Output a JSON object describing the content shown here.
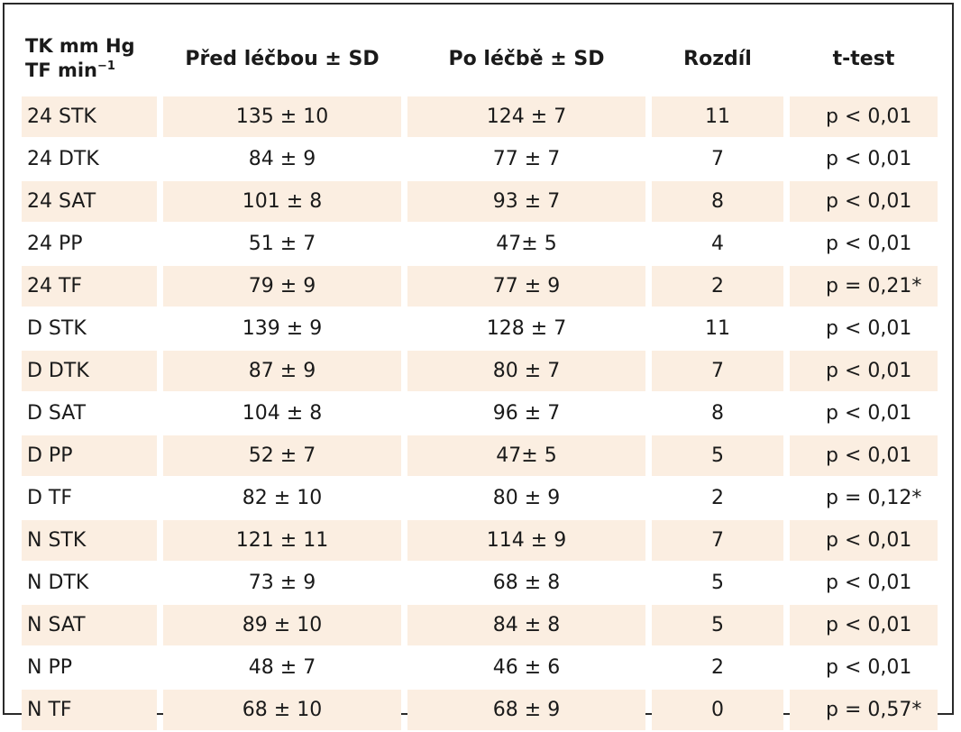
{
  "header": {
    "col1_line1": "TK mm Hg",
    "col1_line2": "TF min",
    "col1_sup": "−1",
    "col2": "Před léčbou ± SD",
    "col3": "Po léčbě ± SD",
    "col4": "Rozdíl",
    "col5": "t-test"
  },
  "rows": [
    {
      "label": "24 STK",
      "before": "135 ± 10",
      "after": "124 ± 7",
      "diff": "11",
      "ttest": "p < 0,01"
    },
    {
      "label": "24 DTK",
      "before": "84 ± 9",
      "after": "77 ± 7",
      "diff": "7",
      "ttest": "p < 0,01"
    },
    {
      "label": "24 SAT",
      "before": "101 ± 8",
      "after": "93 ± 7",
      "diff": "8",
      "ttest": "p < 0,01"
    },
    {
      "label": "24 PP",
      "before": "51 ± 7",
      "after": "47± 5",
      "diff": "4",
      "ttest": "p < 0,01"
    },
    {
      "label": "24 TF",
      "before": "79 ± 9",
      "after": "77 ± 9",
      "diff": "2",
      "ttest": "p = 0,21*"
    },
    {
      "label": "D STK",
      "before": "139 ± 9",
      "after": "128 ± 7",
      "diff": "11",
      "ttest": "p < 0,01"
    },
    {
      "label": "D DTK",
      "before": "87 ± 9",
      "after": "80 ± 7",
      "diff": "7",
      "ttest": "p < 0,01"
    },
    {
      "label": "D SAT",
      "before": "104 ± 8",
      "after": "96 ± 7",
      "diff": "8",
      "ttest": "p < 0,01"
    },
    {
      "label": "D PP",
      "before": "52 ± 7",
      "after": "47± 5",
      "diff": "5",
      "ttest": "p < 0,01"
    },
    {
      "label": "D TF",
      "before": "82 ± 10",
      "after": "80 ± 9",
      "diff": "2",
      "ttest": "p = 0,12*"
    },
    {
      "label": "N STK",
      "before": "121 ± 11",
      "after": "114 ± 9",
      "diff": "7",
      "ttest": "p < 0,01"
    },
    {
      "label": "N DTK",
      "before": "73 ± 9",
      "after": "68 ± 8",
      "diff": "5",
      "ttest": "p < 0,01"
    },
    {
      "label": "N SAT",
      "before": "89 ± 10",
      "after": "84 ± 8",
      "diff": "5",
      "ttest": "p < 0,01"
    },
    {
      "label": "N PP",
      "before": "48 ± 7",
      "after": "46 ± 6",
      "diff": "2",
      "ttest": "p < 0,01"
    },
    {
      "label": "N TF",
      "before": "68 ± 10",
      "after": "68 ± 9",
      "diff": "0",
      "ttest": "p = 0,57*"
    }
  ],
  "colors": {
    "shade": "#fbeee1",
    "border": "#2a2a2a"
  }
}
